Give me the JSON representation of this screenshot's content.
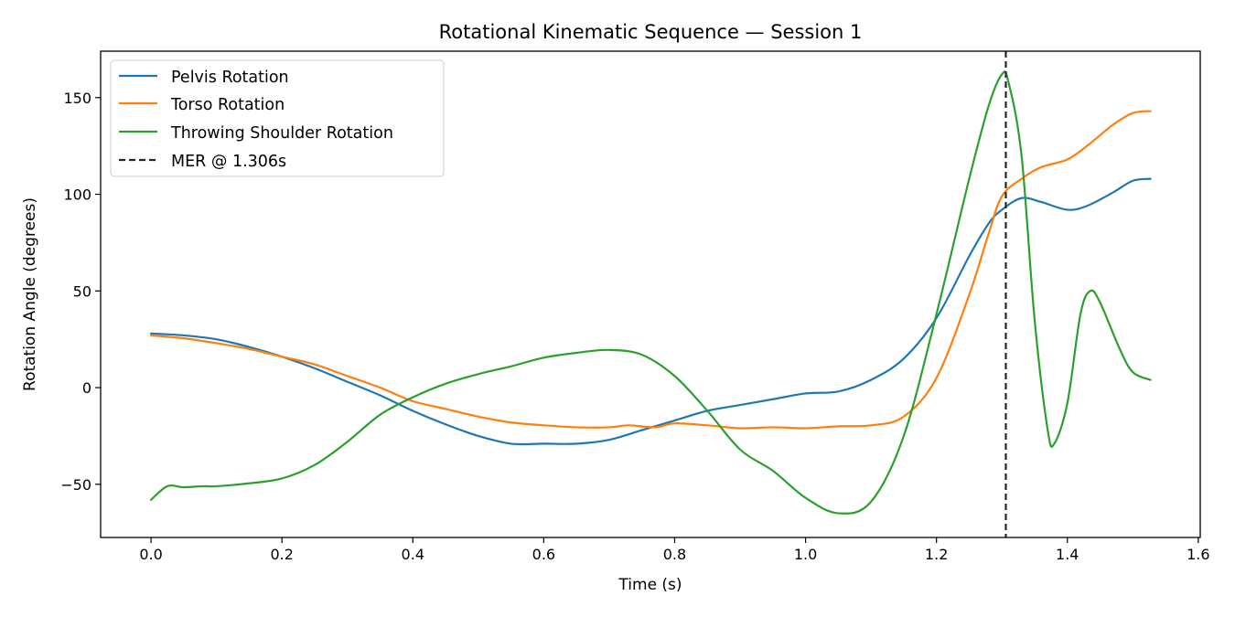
{
  "chart_data": {
    "type": "line",
    "title": "Rotational Kinematic Sequence — Session 1",
    "xlabel": "Time (s)",
    "ylabel": "Rotation Angle (degrees)",
    "xlim": [
      -0.077,
      1.603
    ],
    "ylim": [
      -77.5,
      174
    ],
    "x_ticks": [
      0.0,
      0.2,
      0.4,
      0.6,
      0.8,
      1.0,
      1.2,
      1.4,
      1.6
    ],
    "x_tick_labels": [
      "0.0",
      "0.2",
      "0.4",
      "0.6",
      "0.8",
      "1.0",
      "1.2",
      "1.4",
      "1.6"
    ],
    "y_ticks": [
      -50,
      0,
      50,
      100,
      150
    ],
    "y_tick_labels": [
      "−50",
      "0",
      "50",
      "100",
      "150"
    ],
    "grid": false,
    "legend_position": "top-left",
    "series": [
      {
        "name": "Pelvis Rotation",
        "color": "#1f77b4",
        "style": "solid",
        "points": [
          [
            0.0,
            28
          ],
          [
            0.05,
            27
          ],
          [
            0.1,
            25
          ],
          [
            0.15,
            21
          ],
          [
            0.2,
            16
          ],
          [
            0.25,
            10
          ],
          [
            0.3,
            3
          ],
          [
            0.35,
            -4
          ],
          [
            0.4,
            -12
          ],
          [
            0.45,
            -19
          ],
          [
            0.5,
            -25
          ],
          [
            0.55,
            -29
          ],
          [
            0.6,
            -29
          ],
          [
            0.65,
            -29
          ],
          [
            0.7,
            -27
          ],
          [
            0.75,
            -22
          ],
          [
            0.8,
            -17
          ],
          [
            0.85,
            -12
          ],
          [
            0.9,
            -9
          ],
          [
            0.95,
            -6
          ],
          [
            1.0,
            -3
          ],
          [
            1.05,
            -2
          ],
          [
            1.1,
            4
          ],
          [
            1.15,
            15
          ],
          [
            1.2,
            36
          ],
          [
            1.25,
            68
          ],
          [
            1.28,
            85
          ],
          [
            1.3,
            92
          ],
          [
            1.33,
            98
          ],
          [
            1.36,
            96
          ],
          [
            1.4,
            92
          ],
          [
            1.43,
            94
          ],
          [
            1.47,
            101
          ],
          [
            1.5,
            107
          ],
          [
            1.527,
            108
          ]
        ]
      },
      {
        "name": "Torso Rotation",
        "color": "#ff7f0e",
        "style": "solid",
        "points": [
          [
            0.0,
            27
          ],
          [
            0.05,
            25.5
          ],
          [
            0.1,
            23
          ],
          [
            0.15,
            20
          ],
          [
            0.2,
            16
          ],
          [
            0.25,
            12
          ],
          [
            0.3,
            6
          ],
          [
            0.35,
            0
          ],
          [
            0.4,
            -7
          ],
          [
            0.45,
            -11
          ],
          [
            0.5,
            -15
          ],
          [
            0.55,
            -18
          ],
          [
            0.6,
            -19.5
          ],
          [
            0.65,
            -20.5
          ],
          [
            0.7,
            -20.5
          ],
          [
            0.73,
            -19.5
          ],
          [
            0.77,
            -20.5
          ],
          [
            0.8,
            -18.5
          ],
          [
            0.85,
            -19.5
          ],
          [
            0.9,
            -21
          ],
          [
            0.95,
            -20.5
          ],
          [
            1.0,
            -21
          ],
          [
            1.05,
            -20
          ],
          [
            1.1,
            -19.5
          ],
          [
            1.15,
            -15
          ],
          [
            1.2,
            5
          ],
          [
            1.25,
            48
          ],
          [
            1.28,
            80
          ],
          [
            1.3,
            99
          ],
          [
            1.33,
            108
          ],
          [
            1.36,
            114
          ],
          [
            1.4,
            118
          ],
          [
            1.43,
            125
          ],
          [
            1.47,
            136
          ],
          [
            1.5,
            142
          ],
          [
            1.527,
            143
          ]
        ]
      },
      {
        "name": "Throwing Shoulder Rotation",
        "color": "#2ca02c",
        "style": "solid",
        "points": [
          [
            0.0,
            -58
          ],
          [
            0.025,
            -51
          ],
          [
            0.05,
            -51.5
          ],
          [
            0.08,
            -51
          ],
          [
            0.1,
            -51
          ],
          [
            0.15,
            -49.5
          ],
          [
            0.2,
            -47
          ],
          [
            0.25,
            -40
          ],
          [
            0.3,
            -28
          ],
          [
            0.35,
            -14
          ],
          [
            0.4,
            -5
          ],
          [
            0.45,
            2
          ],
          [
            0.5,
            7
          ],
          [
            0.55,
            11
          ],
          [
            0.6,
            15.5
          ],
          [
            0.65,
            18
          ],
          [
            0.7,
            19.5
          ],
          [
            0.75,
            17
          ],
          [
            0.8,
            6
          ],
          [
            0.85,
            -12
          ],
          [
            0.9,
            -32
          ],
          [
            0.95,
            -43
          ],
          [
            1.0,
            -57
          ],
          [
            1.05,
            -65
          ],
          [
            1.1,
            -59
          ],
          [
            1.15,
            -25
          ],
          [
            1.2,
            38
          ],
          [
            1.25,
            108
          ],
          [
            1.28,
            146
          ],
          [
            1.3,
            162
          ],
          [
            1.31,
            158
          ],
          [
            1.33,
            120
          ],
          [
            1.35,
            35
          ],
          [
            1.37,
            -22
          ],
          [
            1.38,
            -29
          ],
          [
            1.4,
            -8
          ],
          [
            1.42,
            38
          ],
          [
            1.435,
            50
          ],
          [
            1.45,
            44
          ],
          [
            1.48,
            20
          ],
          [
            1.5,
            8
          ],
          [
            1.527,
            4
          ]
        ]
      },
      {
        "name": "MER @ 1.306s",
        "color": "#262626",
        "style": "dashed",
        "type": "vline",
        "x": 1.306
      }
    ]
  }
}
